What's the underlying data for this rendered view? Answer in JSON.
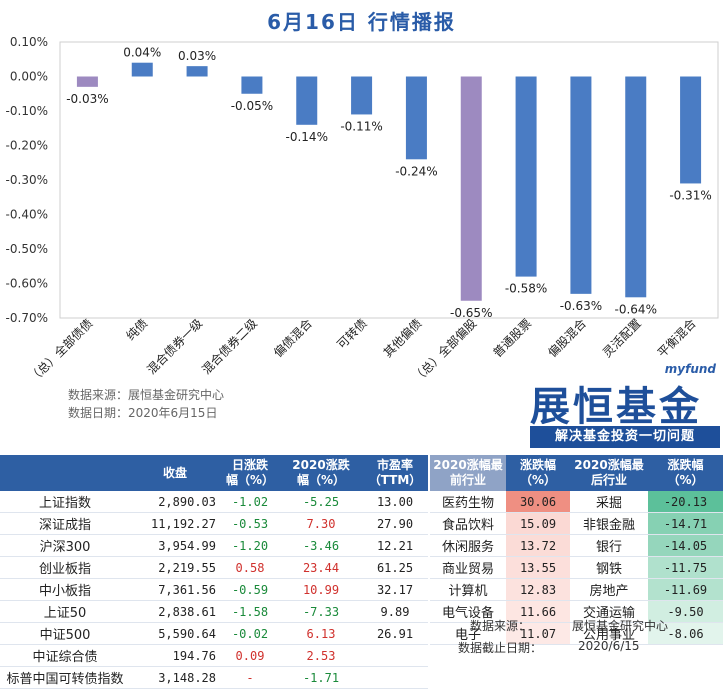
{
  "title": "6月16日  行情播报",
  "source_lines": [
    "数据来源：展恒基金研究中心",
    "数据日期：2020年6月15日"
  ],
  "brand": {
    "sub": "myfund",
    "name": "展恒基金",
    "slogan": "解决基金投资一切问题"
  },
  "colors": {
    "bar_default": "#4a7cc4",
    "bar_highlight": "#9d8ac0",
    "header": "#2e5fa3"
  },
  "chart_data": {
    "type": "bar",
    "categories": [
      "（总）全部债债",
      "纯债",
      "混合债券一级",
      "混合债券二级",
      "偏债混合",
      "可转债",
      "其他偏债",
      "（总）全部偏股",
      "普通股票",
      "偏股混合",
      "灵活配置",
      "平衡混合"
    ],
    "values": [
      -0.03,
      0.04,
      0.03,
      -0.05,
      -0.14,
      -0.11,
      -0.24,
      -0.65,
      -0.58,
      -0.63,
      -0.64,
      -0.31
    ],
    "value_labels": [
      "-0.03%",
      "0.04%",
      "0.03%",
      "-0.05%",
      "-0.14%",
      "-0.11%",
      "-0.24%",
      "-0.65%",
      "-0.58%",
      "-0.63%",
      "-0.64%",
      "-0.31%"
    ],
    "highlight": [
      0,
      7
    ],
    "ylim": [
      -0.7,
      0.1
    ],
    "yticks": [
      "0.10%",
      "0.00%",
      "-0.10%",
      "-0.20%",
      "-0.30%",
      "-0.40%",
      "-0.50%",
      "-0.60%",
      "-0.70%"
    ],
    "ytick_values": [
      0.1,
      0.0,
      -0.1,
      -0.2,
      -0.3,
      -0.4,
      -0.5,
      -0.6,
      -0.7
    ],
    "grid": false
  },
  "index_table": {
    "headers": [
      "",
      "收盘",
      "日涨跌\n幅（%）",
      "2020涨跌\n幅（%）",
      "市盈率\n（TTM）"
    ],
    "rows": [
      {
        "name": "上证指数",
        "close": "2,890.03",
        "day": "-1.02",
        "day_dir": "down",
        "ytd": "-5.25",
        "ytd_dir": "down",
        "pe": "13.00"
      },
      {
        "name": "深证成指",
        "close": "11,192.27",
        "day": "-0.53",
        "day_dir": "down",
        "ytd": "7.30",
        "ytd_dir": "up",
        "pe": "27.90"
      },
      {
        "name": "沪深300",
        "close": "3,954.99",
        "day": "-1.20",
        "day_dir": "down",
        "ytd": "-3.46",
        "ytd_dir": "down",
        "pe": "12.21"
      },
      {
        "name": "创业板指",
        "close": "2,219.55",
        "day": "0.58",
        "day_dir": "up",
        "ytd": "23.44",
        "ytd_dir": "up",
        "pe": "61.25"
      },
      {
        "name": "中小板指",
        "close": "7,361.56",
        "day": "-0.59",
        "day_dir": "down",
        "ytd": "10.99",
        "ytd_dir": "up",
        "pe": "32.17"
      },
      {
        "name": "上证50",
        "close": "2,838.61",
        "day": "-1.58",
        "day_dir": "down",
        "ytd": "-7.33",
        "ytd_dir": "down",
        "pe": "9.89"
      },
      {
        "name": "中证500",
        "close": "5,590.64",
        "day": "-0.02",
        "day_dir": "down",
        "ytd": "6.13",
        "ytd_dir": "up",
        "pe": "26.91"
      },
      {
        "name": "中证综合债",
        "close": "194.76",
        "day": "0.09",
        "day_dir": "up",
        "ytd": "2.53",
        "ytd_dir": "up",
        "pe": ""
      },
      {
        "name": "标普中国可转债指数",
        "close": "3,148.28",
        "day": "-",
        "day_dir": "up",
        "ytd": "-1.71",
        "ytd_dir": "down",
        "pe": ""
      }
    ]
  },
  "sector_table": {
    "headers": [
      "2020涨幅最\n前行业",
      "涨跌幅\n（%）",
      "2020涨幅最\n后行业",
      "涨跌幅\n（%）"
    ],
    "rows": [
      {
        "top": "医药生物",
        "top_val": "30.06",
        "bot": "采掘",
        "bot_val": "-20.13"
      },
      {
        "top": "食品饮料",
        "top_val": "15.09",
        "bot": "非银金融",
        "bot_val": "-14.71"
      },
      {
        "top": "休闲服务",
        "top_val": "13.72",
        "bot": "银行",
        "bot_val": "-14.05"
      },
      {
        "top": "商业贸易",
        "top_val": "13.55",
        "bot": "钢铁",
        "bot_val": "-11.75"
      },
      {
        "top": "计算机",
        "top_val": "12.83",
        "bot": "房地产",
        "bot_val": "-11.69"
      },
      {
        "top": "电气设备",
        "top_val": "11.66",
        "bot": "交通运输",
        "bot_val": "-9.50"
      },
      {
        "top": "电子",
        "top_val": "11.07",
        "bot": "公用事业",
        "bot_val": "-8.06"
      }
    ],
    "footer": [
      {
        "label": "数据来源：",
        "value": "展恒基金研究中心"
      },
      {
        "label": "数据截止日期：",
        "value": "2020/6/15"
      }
    ]
  }
}
